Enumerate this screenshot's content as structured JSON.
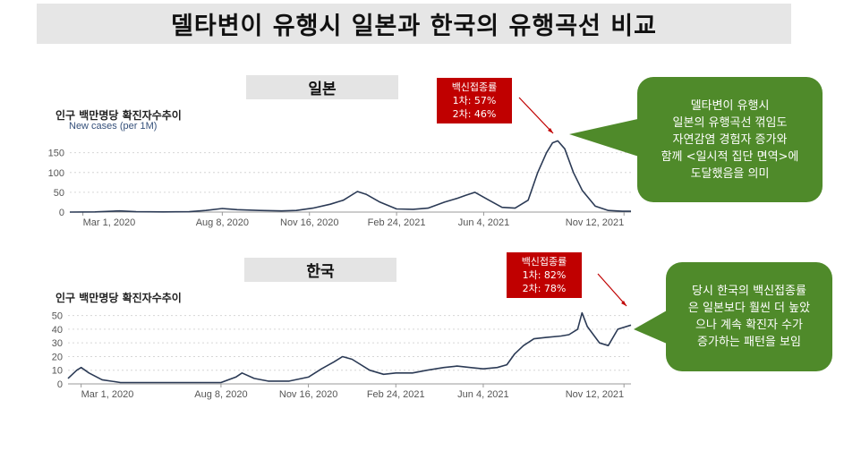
{
  "title": "델타변이 유행시 일본과 한국의 유행곡선 비교",
  "colors": {
    "line": "#2b3a55",
    "grid": "#d6d6d6",
    "vaccine_box": "#c00000",
    "callout": "#4f8a2a"
  },
  "japan": {
    "country": "일본",
    "ylabel": "인구 백만명당 확진자수추이",
    "subtitle": "New cases (per 1M)",
    "vaccine": {
      "title": "백신접종률",
      "dose1": "1차: 57%",
      "dose2": "2차: 46%"
    },
    "callout": "델타변이 유행시\n일본의 유행곡선 꺾임도\n자연감염 경험자 증가와\n함께 <일시적 집단 면역>에\n도달했음을 의미"
  },
  "korea": {
    "country": "한국",
    "ylabel": "인구 백만명당 확진자수추이",
    "vaccine": {
      "title": "백신접종률",
      "dose1": "1차: 82%",
      "dose2": "2차: 78%"
    },
    "callout": "당시 한국의 백신접종률\n은 일본보다 훨씬 더 높았\n으나 계속 확진자 수가\n증가하는 패턴을 보임"
  },
  "chart_data": [
    {
      "type": "line",
      "panel": "japan",
      "ylabel": "New cases (per 1M)",
      "ylim": [
        0,
        190
      ],
      "yticks": [
        0,
        50,
        100,
        150
      ],
      "xticks": [
        "Mar 1, 2020",
        "Aug 8, 2020",
        "Nov 16, 2020",
        "Feb 24, 2021",
        "Jun 4, 2021",
        "Nov 12, 2021"
      ],
      "xrange": [
        "2020-02-15",
        "2021-11-20"
      ],
      "grid": true,
      "series": [
        {
          "x": [
            "2020-02-15",
            "2020-03-15",
            "2020-04-12",
            "2020-05-01",
            "2020-06-01",
            "2020-07-01",
            "2020-07-20",
            "2020-08-08",
            "2020-08-25",
            "2020-09-20",
            "2020-10-15",
            "2020-11-01",
            "2020-11-20",
            "2020-12-10",
            "2020-12-25",
            "2021-01-10",
            "2021-01-20",
            "2021-02-05",
            "2021-02-24",
            "2021-03-15",
            "2021-04-01",
            "2021-04-20",
            "2021-05-05",
            "2021-05-14",
            "2021-05-25",
            "2021-06-10",
            "2021-06-25",
            "2021-07-10",
            "2021-07-25",
            "2021-08-05",
            "2021-08-15",
            "2021-08-22",
            "2021-08-28",
            "2021-09-05",
            "2021-09-15",
            "2021-09-25",
            "2021-10-10",
            "2021-10-25",
            "2021-11-10",
            "2021-11-20"
          ],
          "y": [
            0,
            0.5,
            3,
            1,
            0.5,
            1,
            4,
            9,
            6,
            4,
            3,
            4,
            10,
            20,
            30,
            52,
            45,
            25,
            8,
            7,
            10,
            25,
            35,
            42,
            50,
            30,
            12,
            10,
            30,
            100,
            150,
            175,
            180,
            160,
            100,
            55,
            15,
            4,
            2,
            2
          ]
        }
      ]
    },
    {
      "type": "line",
      "panel": "korea",
      "ylabel": "인구 백만명당 확진자수추이",
      "ylim": [
        0,
        55
      ],
      "yticks": [
        0,
        10,
        20,
        30,
        40,
        50
      ],
      "xticks": [
        "Mar 1, 2020",
        "Aug 8, 2020",
        "Nov 16, 2020",
        "Feb 24, 2021",
        "Jun 4, 2021",
        "Nov 12, 2021"
      ],
      "xrange": [
        "2020-02-15",
        "2021-11-20"
      ],
      "grid": true,
      "series": [
        {
          "x": [
            "2020-02-15",
            "2020-02-25",
            "2020-03-01",
            "2020-03-10",
            "2020-03-25",
            "2020-04-15",
            "2020-05-15",
            "2020-06-15",
            "2020-07-15",
            "2020-08-08",
            "2020-08-25",
            "2020-09-01",
            "2020-09-15",
            "2020-10-01",
            "2020-10-25",
            "2020-11-16",
            "2020-12-01",
            "2020-12-15",
            "2020-12-25",
            "2021-01-05",
            "2021-01-25",
            "2021-02-10",
            "2021-02-24",
            "2021-03-15",
            "2021-04-01",
            "2021-04-20",
            "2021-05-05",
            "2021-05-20",
            "2021-06-04",
            "2021-06-20",
            "2021-07-01",
            "2021-07-10",
            "2021-07-20",
            "2021-08-01",
            "2021-08-15",
            "2021-09-01",
            "2021-09-10",
            "2021-09-20",
            "2021-09-25",
            "2021-10-01",
            "2021-10-15",
            "2021-10-25",
            "2021-11-05",
            "2021-11-20"
          ],
          "y": [
            4,
            10,
            12,
            8,
            3,
            1,
            1,
            1,
            1,
            1,
            5,
            8,
            4,
            2,
            2,
            5,
            11,
            16,
            20,
            18,
            10,
            7,
            8,
            8,
            10,
            12,
            13,
            12,
            11,
            12,
            14,
            22,
            28,
            33,
            34,
            35,
            36,
            40,
            52,
            42,
            30,
            28,
            40,
            43
          ]
        }
      ]
    }
  ]
}
